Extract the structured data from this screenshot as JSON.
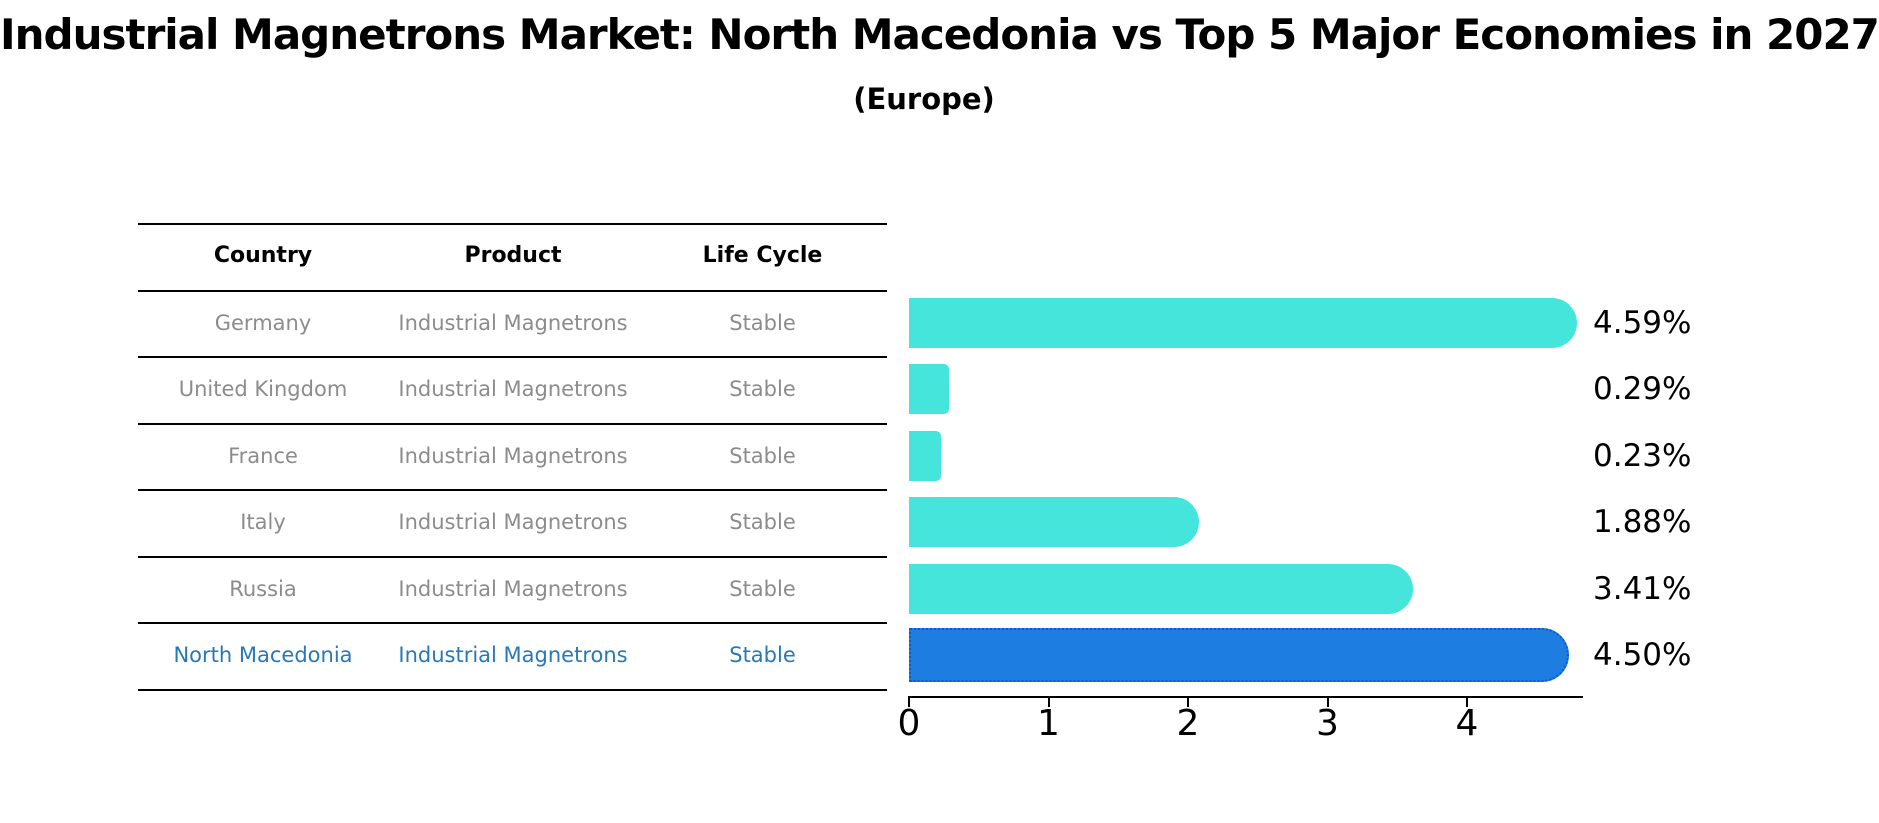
{
  "title": "Industrial Magnetrons Market: North Macedonia vs Top 5 Major Economies in 2027",
  "subtitle": "(Europe)",
  "table": {
    "headers": [
      "Country",
      "Product",
      "Life Cycle"
    ],
    "rows": [
      {
        "country": "Germany",
        "product": "Industrial Magnetrons",
        "life_cycle": "Stable",
        "highlight": false
      },
      {
        "country": "United Kingdom",
        "product": "Industrial Magnetrons",
        "life_cycle": "Stable",
        "highlight": false
      },
      {
        "country": "France",
        "product": "Industrial Magnetrons",
        "life_cycle": "Stable",
        "highlight": false
      },
      {
        "country": "Italy",
        "product": "Industrial Magnetrons",
        "life_cycle": "Stable",
        "highlight": false
      },
      {
        "country": "Russia",
        "product": "Industrial Magnetrons",
        "life_cycle": "Stable",
        "highlight": false
      },
      {
        "country": "North Macedonia",
        "product": "Industrial Magnetrons",
        "life_cycle": "Stable",
        "highlight": true
      }
    ]
  },
  "chart_data": {
    "type": "bar",
    "orientation": "horizontal",
    "title": "Industrial Magnetrons Market: North Macedonia vs Top 5 Major Economies in 2027 (Europe)",
    "categories": [
      "Germany",
      "United Kingdom",
      "France",
      "Italy",
      "Russia",
      "North Macedonia"
    ],
    "values": [
      4.59,
      0.29,
      0.23,
      1.88,
      3.41,
      4.5
    ],
    "value_labels": [
      "4.59%",
      "0.29%",
      "0.23%",
      "1.88%",
      "3.41%",
      "4.50%"
    ],
    "highlight_index": 5,
    "xlabel": "",
    "ylabel": "",
    "xlim": [
      0,
      4.83
    ],
    "xticks": [
      "0",
      "1",
      "2",
      "3",
      "4"
    ],
    "grid": false,
    "legend": false
  },
  "colors": {
    "bar_default": "#46E5DC",
    "bar_highlight": "#1E7DE1",
    "bar_highlight_border": "#0F5AC8",
    "row_text": "#8c8c8c",
    "highlight_row_text": "#2878B8",
    "table_line": "#000000",
    "text": "#000000",
    "background": "#ffffff"
  }
}
